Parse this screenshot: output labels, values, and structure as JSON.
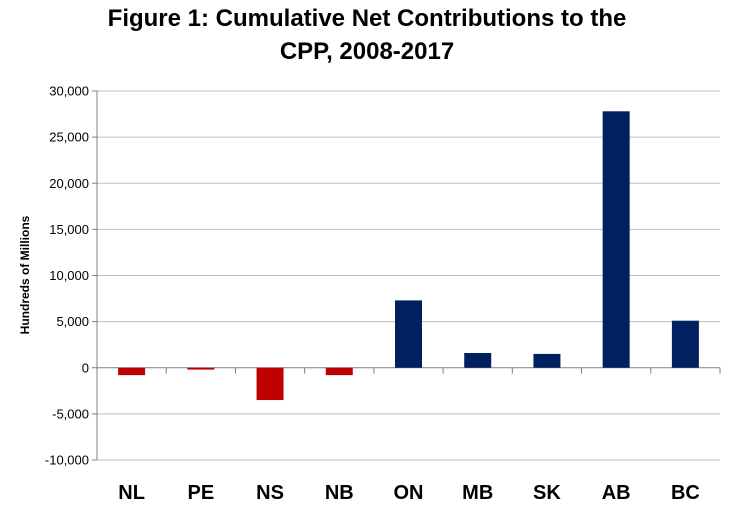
{
  "chart_data": {
    "type": "bar",
    "title_line1": "Figure 1: Cumulative Net Contributions to the",
    "title_line2": "CPP, 2008-2017",
    "ylabel": "Hundreds of Millions",
    "xlabel": "",
    "categories": [
      "NL",
      "PE",
      "NS",
      "NB",
      "ON",
      "MB",
      "SK",
      "AB",
      "BC"
    ],
    "values": [
      -800,
      -200,
      -3500,
      -800,
      7300,
      1600,
      1500,
      27800,
      5100
    ],
    "ylim": [
      -10000,
      30000
    ],
    "yticks": [
      30000,
      25000,
      20000,
      15000,
      10000,
      5000,
      0,
      -5000,
      -10000
    ],
    "ytick_labels": [
      "30,000",
      "25,000",
      "20,000",
      "15,000",
      "10,000",
      "5,000",
      "0",
      "-5,000",
      "-10,000"
    ],
    "grid": true,
    "legend": "none",
    "colors": {
      "positive": "#002060",
      "negative": "#C00000",
      "grid": "#BFBFBF",
      "axis": "#808080"
    }
  }
}
